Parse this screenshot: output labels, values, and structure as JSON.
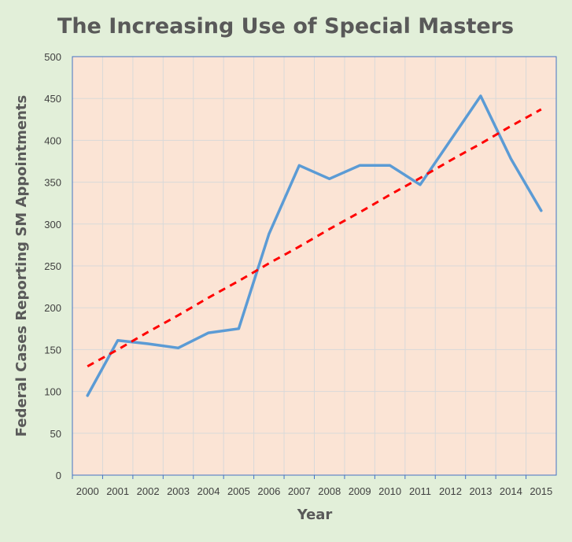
{
  "chart_data": {
    "type": "line",
    "title": "The Increasing Use of Special Masters",
    "xlabel": "Year",
    "ylabel": "Federal Cases Reporting SM Appointments",
    "categories": [
      "2000",
      "2001",
      "2002",
      "2003",
      "2004",
      "2005",
      "2006",
      "2007",
      "2008",
      "2009",
      "2010",
      "2011",
      "2012",
      "2013",
      "2014",
      "2015"
    ],
    "series": [
      {
        "values": [
          95,
          161,
          157,
          152,
          170,
          175,
          288,
          370,
          354,
          370,
          370,
          347,
          400,
          453,
          378,
          316
        ],
        "color": "#5b9bd5",
        "style": "solid"
      },
      {
        "values": [
          130,
          150,
          171,
          191,
          212,
          232,
          253,
          273,
          294,
          314,
          335,
          355,
          376,
          396,
          417,
          437
        ],
        "color": "#ff0000",
        "style": "dashed",
        "role": "linear trendline"
      }
    ],
    "ylim": [
      0,
      500
    ],
    "yticks": [
      0,
      50,
      100,
      150,
      200,
      250,
      300,
      350,
      400,
      450,
      500
    ],
    "grid": true,
    "legend": "none",
    "plot_background": "#fbe4d5",
    "page_background": "#e2efd9",
    "axis_color": "#4472c4"
  }
}
